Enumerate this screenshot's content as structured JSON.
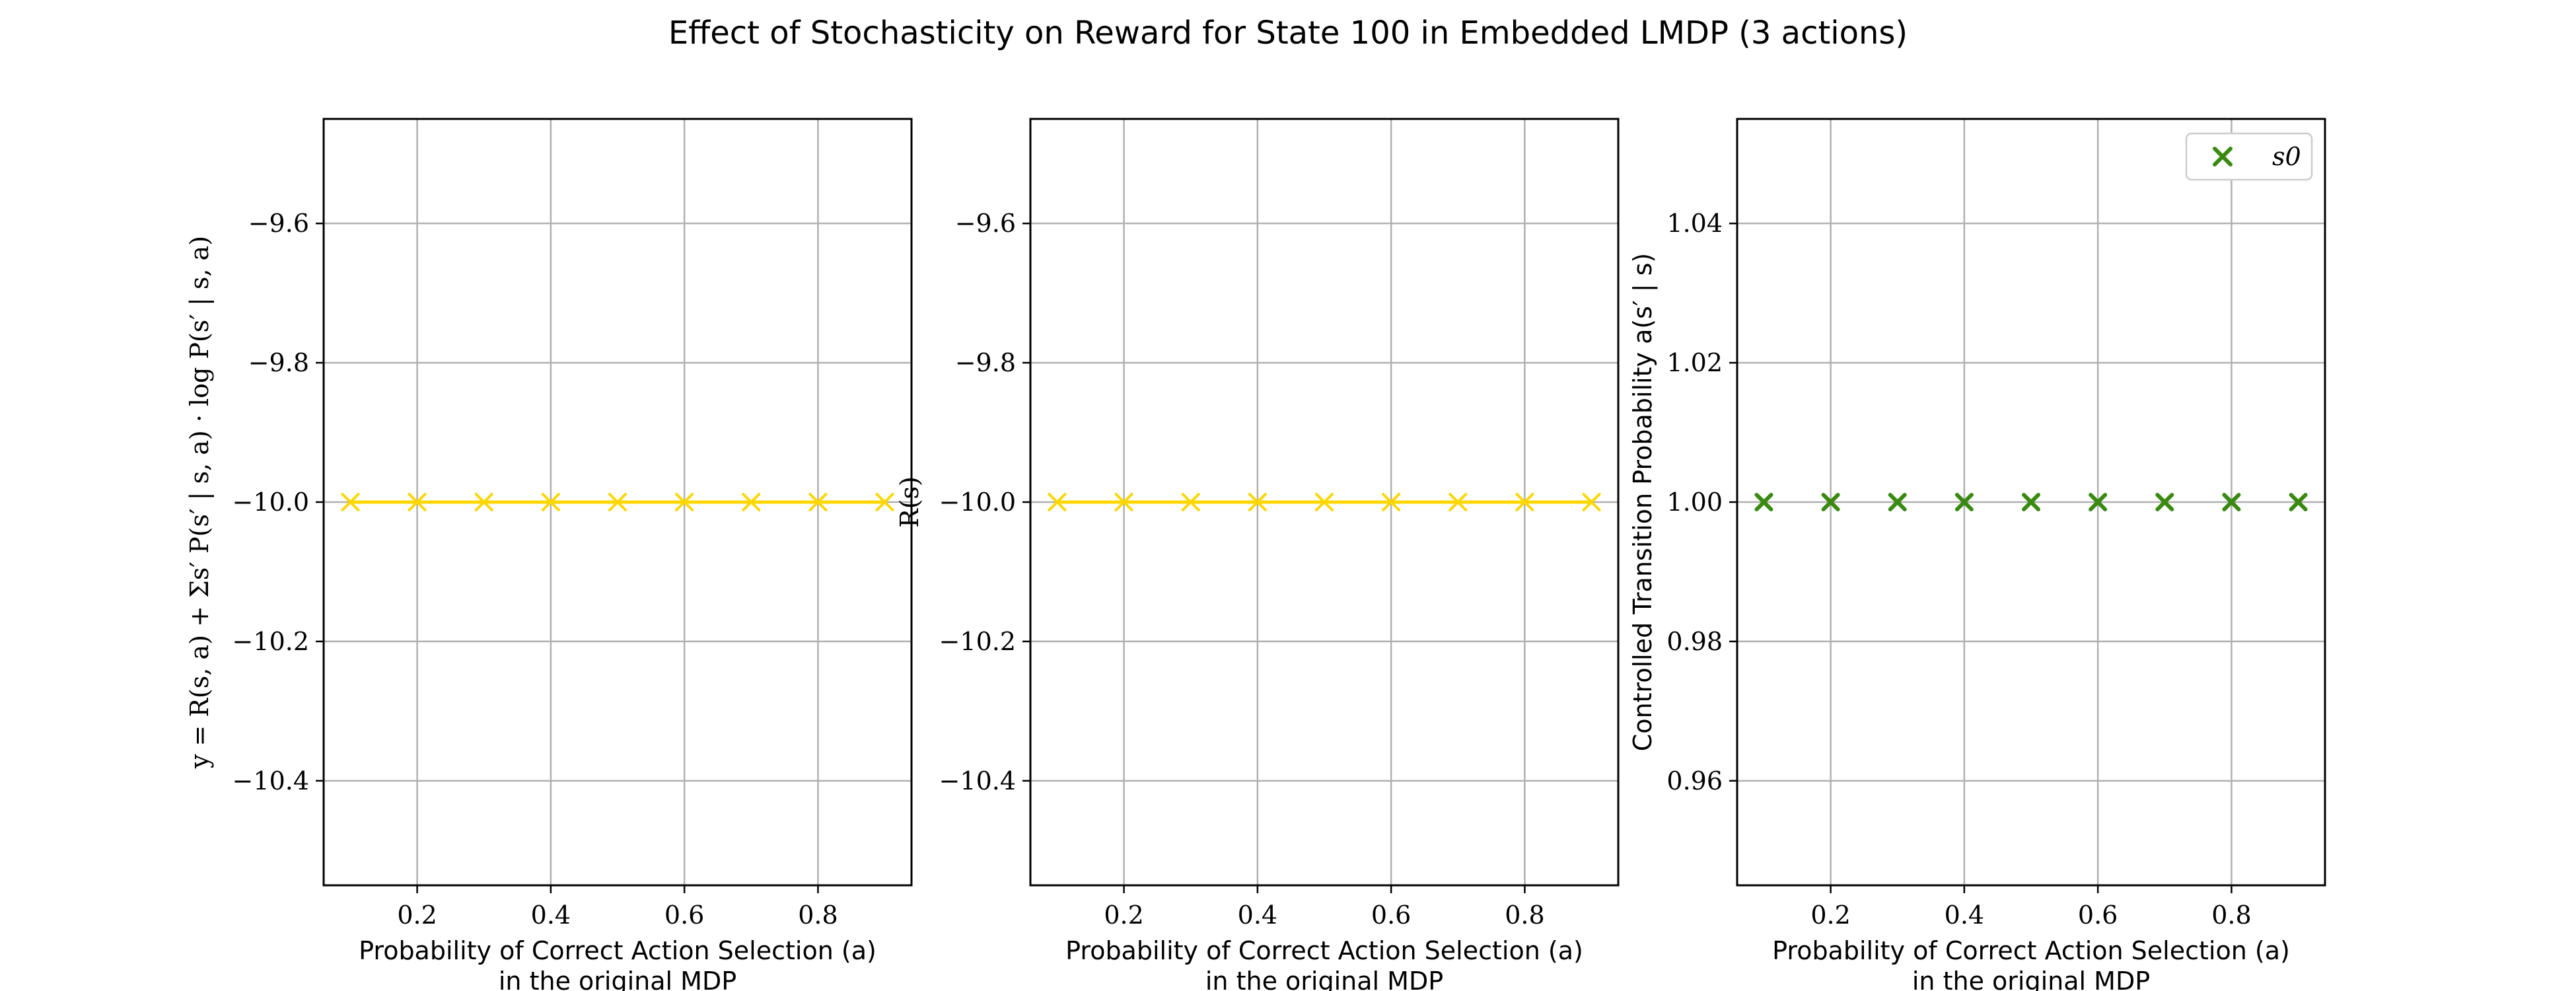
{
  "figure": {
    "title": "Effect of Stochasticity on Reward for State 100 in Embedded LMDP (3 actions)"
  },
  "chart_data": [
    {
      "type": "line",
      "xlabel": "Probability of Correct Action Selection (a)",
      "xlabel2": "in the original MDP",
      "ylabel": "y = R(s, a) + Σs′ P(s′ | s, a) · log P(s′ | s, a)",
      "xlim": [
        0.06,
        0.94
      ],
      "ylim": [
        -10.55,
        -9.45
      ],
      "xticks": [
        0.2,
        0.4,
        0.6,
        0.8
      ],
      "xtick_labels": [
        "0.2",
        "0.4",
        "0.6",
        "0.8"
      ],
      "yticks": [
        -9.6,
        -9.8,
        -10.0,
        -10.2,
        -10.4
      ],
      "ytick_labels": [
        "−9.6",
        "−9.8",
        "−10.0",
        "−10.2",
        "−10.4"
      ],
      "grid": true,
      "color": "#ffd700",
      "marker": "x",
      "x": [
        0.1,
        0.2,
        0.3,
        0.4,
        0.5,
        0.6,
        0.7,
        0.8,
        0.9
      ],
      "y": [
        -10.0,
        -10.0,
        -10.0,
        -10.0,
        -10.0,
        -10.0,
        -10.0,
        -10.0,
        -10.0
      ]
    },
    {
      "type": "line",
      "xlabel": "Probability of Correct Action Selection (a)",
      "xlabel2": "in the original MDP",
      "ylabel": "R(s)",
      "xlim": [
        0.06,
        0.94
      ],
      "ylim": [
        -10.55,
        -9.45
      ],
      "xticks": [
        0.2,
        0.4,
        0.6,
        0.8
      ],
      "xtick_labels": [
        "0.2",
        "0.4",
        "0.6",
        "0.8"
      ],
      "yticks": [
        -9.6,
        -9.8,
        -10.0,
        -10.2,
        -10.4
      ],
      "ytick_labels": [
        "−9.6",
        "−9.8",
        "−10.0",
        "−10.2",
        "−10.4"
      ],
      "grid": true,
      "color": "#ffd700",
      "marker": "x",
      "x": [
        0.1,
        0.2,
        0.3,
        0.4,
        0.5,
        0.6,
        0.7,
        0.8,
        0.9
      ],
      "y": [
        -10.0,
        -10.0,
        -10.0,
        -10.0,
        -10.0,
        -10.0,
        -10.0,
        -10.0,
        -10.0
      ]
    },
    {
      "type": "scatter",
      "xlabel": "Probability of Correct Action Selection (a)",
      "xlabel2": "in the original MDP",
      "ylabel": "Controlled Transition Probability a(s′ | s)",
      "xlim": [
        0.06,
        0.94
      ],
      "ylim": [
        0.945,
        1.055
      ],
      "xticks": [
        0.2,
        0.4,
        0.6,
        0.8
      ],
      "xtick_labels": [
        "0.2",
        "0.4",
        "0.6",
        "0.8"
      ],
      "yticks": [
        1.04,
        1.02,
        1.0,
        0.98,
        0.96
      ],
      "ytick_labels": [
        "1.04",
        "1.02",
        "1.00",
        "0.98",
        "0.96"
      ],
      "grid": true,
      "legend": "top-right",
      "series": [
        {
          "name": "s0",
          "color": "#3a8a12",
          "marker": "x",
          "x": [
            0.1,
            0.2,
            0.3,
            0.4,
            0.5,
            0.6,
            0.7,
            0.8,
            0.9
          ],
          "y": [
            1.0,
            1.0,
            1.0,
            1.0,
            1.0,
            1.0,
            1.0,
            1.0,
            1.0
          ]
        }
      ]
    }
  ]
}
